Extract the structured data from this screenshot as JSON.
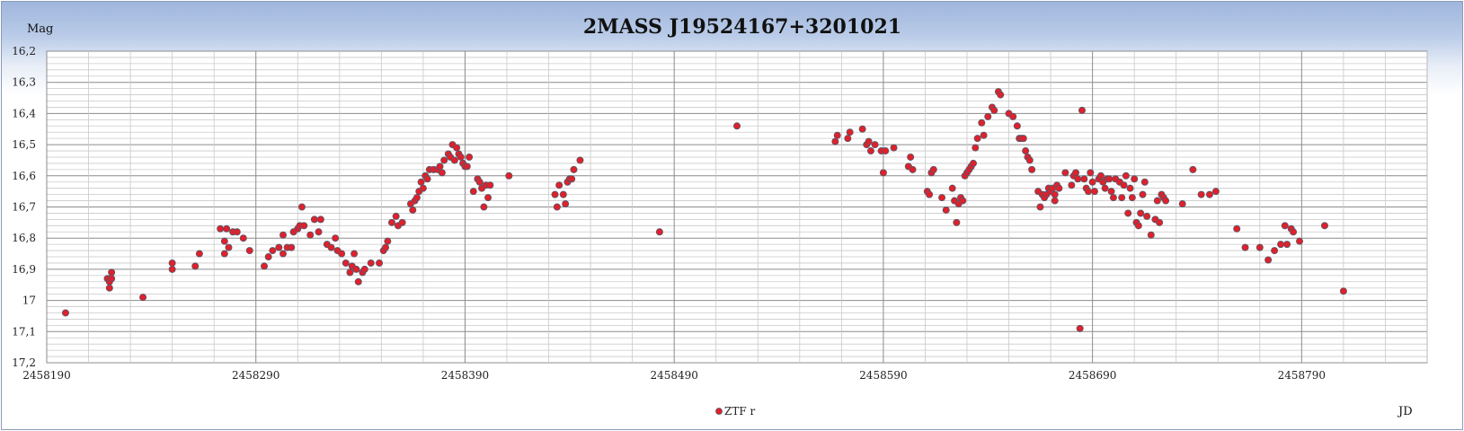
{
  "chart_data": {
    "type": "scatter",
    "title": "2MASS J19524167+3201021",
    "ylabel": "Mag",
    "xlabel": "JD",
    "y_reversed": true,
    "ylim": [
      16.2,
      17.2
    ],
    "y_ticks": [
      "16,2",
      "16,3",
      "16,4",
      "16,5",
      "16,6",
      "16,7",
      "16,8",
      "16,9",
      "17",
      "17,1",
      "17,2"
    ],
    "xlim": [
      2458190,
      2458850
    ],
    "x_ticks": [
      "2458190",
      "2458290",
      "2458390",
      "2458490",
      "2458590",
      "2458690",
      "2458790"
    ],
    "grid": "on",
    "legend_position": "bottom-center",
    "marker_color": "#e0202a",
    "marker_edge": "#505a6e",
    "series": [
      {
        "name": "ZTF r",
        "points": [
          [
            2458199,
            17.04
          ],
          [
            2458219,
            16.93
          ],
          [
            2458220,
            16.94
          ],
          [
            2458220,
            16.96
          ],
          [
            2458221,
            16.93
          ],
          [
            2458221,
            16.91
          ],
          [
            2458236,
            16.99
          ],
          [
            2458250,
            16.88
          ],
          [
            2458250,
            16.9
          ],
          [
            2458261,
            16.89
          ],
          [
            2458263,
            16.85
          ],
          [
            2458273,
            16.77
          ],
          [
            2458275,
            16.85
          ],
          [
            2458275,
            16.81
          ],
          [
            2458276,
            16.77
          ],
          [
            2458277,
            16.83
          ],
          [
            2458279,
            16.78
          ],
          [
            2458281,
            16.78
          ],
          [
            2458284,
            16.8
          ],
          [
            2458287,
            16.84
          ],
          [
            2458294,
            16.89
          ],
          [
            2458296,
            16.86
          ],
          [
            2458298,
            16.84
          ],
          [
            2458301,
            16.83
          ],
          [
            2458303,
            16.85
          ],
          [
            2458303,
            16.79
          ],
          [
            2458305,
            16.83
          ],
          [
            2458307,
            16.83
          ],
          [
            2458308,
            16.78
          ],
          [
            2458310,
            16.77
          ],
          [
            2458311,
            16.76
          ],
          [
            2458312,
            16.7
          ],
          [
            2458313,
            16.76
          ],
          [
            2458316,
            16.79
          ],
          [
            2458318,
            16.74
          ],
          [
            2458320,
            16.78
          ],
          [
            2458321,
            16.74
          ],
          [
            2458324,
            16.82
          ],
          [
            2458326,
            16.83
          ],
          [
            2458328,
            16.8
          ],
          [
            2458329,
            16.84
          ],
          [
            2458331,
            16.85
          ],
          [
            2458333,
            16.88
          ],
          [
            2458335,
            16.91
          ],
          [
            2458336,
            16.89
          ],
          [
            2458337,
            16.85
          ],
          [
            2458338,
            16.9
          ],
          [
            2458339,
            16.94
          ],
          [
            2458341,
            16.91
          ],
          [
            2458342,
            16.9
          ],
          [
            2458345,
            16.88
          ],
          [
            2458349,
            16.88
          ],
          [
            2458351,
            16.84
          ],
          [
            2458352,
            16.83
          ],
          [
            2458353,
            16.81
          ],
          [
            2458355,
            16.75
          ],
          [
            2458357,
            16.73
          ],
          [
            2458358,
            16.76
          ],
          [
            2458360,
            16.75
          ],
          [
            2458364,
            16.69
          ],
          [
            2458365,
            16.71
          ],
          [
            2458366,
            16.68
          ],
          [
            2458367,
            16.67
          ],
          [
            2458368,
            16.65
          ],
          [
            2458369,
            16.62
          ],
          [
            2458370,
            16.64
          ],
          [
            2458371,
            16.6
          ],
          [
            2458372,
            16.61
          ],
          [
            2458373,
            16.58
          ],
          [
            2458375,
            16.58
          ],
          [
            2458377,
            16.58
          ],
          [
            2458378,
            16.57
          ],
          [
            2458379,
            16.59
          ],
          [
            2458380,
            16.55
          ],
          [
            2458382,
            16.53
          ],
          [
            2458383,
            16.54
          ],
          [
            2458384,
            16.5
          ],
          [
            2458385,
            16.55
          ],
          [
            2458386,
            16.51
          ],
          [
            2458387,
            16.53
          ],
          [
            2458388,
            16.54
          ],
          [
            2458389,
            16.56
          ],
          [
            2458390,
            16.57
          ],
          [
            2458391,
            16.57
          ],
          [
            2458392,
            16.54
          ],
          [
            2458394,
            16.65
          ],
          [
            2458396,
            16.61
          ],
          [
            2458397,
            16.62
          ],
          [
            2458398,
            16.64
          ],
          [
            2458399,
            16.7
          ],
          [
            2458400,
            16.63
          ],
          [
            2458401,
            16.67
          ],
          [
            2458402,
            16.63
          ],
          [
            2458411,
            16.6
          ],
          [
            2458433,
            16.66
          ],
          [
            2458434,
            16.7
          ],
          [
            2458435,
            16.63
          ],
          [
            2458437,
            16.66
          ],
          [
            2458438,
            16.69
          ],
          [
            2458439,
            16.62
          ],
          [
            2458440,
            16.61
          ],
          [
            2458441,
            16.61
          ],
          [
            2458442,
            16.58
          ],
          [
            2458445,
            16.55
          ],
          [
            2458483,
            16.78
          ],
          [
            2458520,
            16.44
          ],
          [
            2458567,
            16.49
          ],
          [
            2458568,
            16.47
          ],
          [
            2458573,
            16.48
          ],
          [
            2458574,
            16.46
          ],
          [
            2458580,
            16.45
          ],
          [
            2458582,
            16.5
          ],
          [
            2458583,
            16.49
          ],
          [
            2458584,
            16.52
          ],
          [
            2458586,
            16.5
          ],
          [
            2458589,
            16.52
          ],
          [
            2458590,
            16.59
          ],
          [
            2458591,
            16.52
          ],
          [
            2458595,
            16.51
          ],
          [
            2458602,
            16.57
          ],
          [
            2458603,
            16.54
          ],
          [
            2458604,
            16.58
          ],
          [
            2458611,
            16.65
          ],
          [
            2458612,
            16.66
          ],
          [
            2458613,
            16.59
          ],
          [
            2458614,
            16.58
          ],
          [
            2458618,
            16.67
          ],
          [
            2458620,
            16.71
          ],
          [
            2458623,
            16.64
          ],
          [
            2458624,
            16.68
          ],
          [
            2458625,
            16.75
          ],
          [
            2458626,
            16.69
          ],
          [
            2458627,
            16.67
          ],
          [
            2458628,
            16.68
          ],
          [
            2458629,
            16.6
          ],
          [
            2458630,
            16.59
          ],
          [
            2458631,
            16.58
          ],
          [
            2458632,
            16.57
          ],
          [
            2458633,
            16.56
          ],
          [
            2458634,
            16.51
          ],
          [
            2458635,
            16.48
          ],
          [
            2458637,
            16.43
          ],
          [
            2458638,
            16.47
          ],
          [
            2458640,
            16.41
          ],
          [
            2458642,
            16.38
          ],
          [
            2458643,
            16.39
          ],
          [
            2458645,
            16.33
          ],
          [
            2458646,
            16.34
          ],
          [
            2458650,
            16.4
          ],
          [
            2458652,
            16.41
          ],
          [
            2458654,
            16.44
          ],
          [
            2458655,
            16.48
          ],
          [
            2458656,
            16.48
          ],
          [
            2458657,
            16.48
          ],
          [
            2458658,
            16.52
          ],
          [
            2458659,
            16.54
          ],
          [
            2458660,
            16.55
          ],
          [
            2458661,
            16.58
          ],
          [
            2458664,
            16.65
          ],
          [
            2458665,
            16.7
          ],
          [
            2458666,
            16.66
          ],
          [
            2458667,
            16.67
          ],
          [
            2458668,
            16.66
          ],
          [
            2458669,
            16.64
          ],
          [
            2458670,
            16.65
          ],
          [
            2458671,
            16.64
          ],
          [
            2458672,
            16.66
          ],
          [
            2458672,
            16.68
          ],
          [
            2458673,
            16.63
          ],
          [
            2458674,
            16.64
          ],
          [
            2458677,
            16.59
          ],
          [
            2458680,
            16.63
          ],
          [
            2458681,
            16.6
          ],
          [
            2458682,
            16.59
          ],
          [
            2458683,
            16.61
          ],
          [
            2458684,
            17.09
          ],
          [
            2458685,
            16.39
          ],
          [
            2458686,
            16.61
          ],
          [
            2458687,
            16.64
          ],
          [
            2458688,
            16.65
          ],
          [
            2458689,
            16.59
          ],
          [
            2458690,
            16.62
          ],
          [
            2458691,
            16.65
          ],
          [
            2458693,
            16.61
          ],
          [
            2458694,
            16.6
          ],
          [
            2458695,
            16.62
          ],
          [
            2458696,
            16.64
          ],
          [
            2458697,
            16.61
          ],
          [
            2458698,
            16.61
          ],
          [
            2458699,
            16.65
          ],
          [
            2458700,
            16.67
          ],
          [
            2458701,
            16.61
          ],
          [
            2458703,
            16.62
          ],
          [
            2458704,
            16.67
          ],
          [
            2458705,
            16.63
          ],
          [
            2458706,
            16.6
          ],
          [
            2458707,
            16.72
          ],
          [
            2458708,
            16.64
          ],
          [
            2458709,
            16.67
          ],
          [
            2458710,
            16.61
          ],
          [
            2458711,
            16.75
          ],
          [
            2458712,
            16.76
          ],
          [
            2458713,
            16.72
          ],
          [
            2458714,
            16.66
          ],
          [
            2458715,
            16.62
          ],
          [
            2458716,
            16.73
          ],
          [
            2458718,
            16.79
          ],
          [
            2458720,
            16.74
          ],
          [
            2458721,
            16.68
          ],
          [
            2458722,
            16.75
          ],
          [
            2458723,
            16.66
          ],
          [
            2458724,
            16.67
          ],
          [
            2458725,
            16.68
          ],
          [
            2458733,
            16.69
          ],
          [
            2458738,
            16.58
          ],
          [
            2458742,
            16.66
          ],
          [
            2458746,
            16.66
          ],
          [
            2458749,
            16.65
          ],
          [
            2458759,
            16.77
          ],
          [
            2458763,
            16.83
          ],
          [
            2458770,
            16.83
          ],
          [
            2458774,
            16.87
          ],
          [
            2458777,
            16.84
          ],
          [
            2458780,
            16.82
          ],
          [
            2458782,
            16.76
          ],
          [
            2458783,
            16.82
          ],
          [
            2458785,
            16.77
          ],
          [
            2458786,
            16.78
          ],
          [
            2458789,
            16.81
          ],
          [
            2458801,
            16.76
          ],
          [
            2458810,
            16.97
          ]
        ]
      }
    ]
  }
}
